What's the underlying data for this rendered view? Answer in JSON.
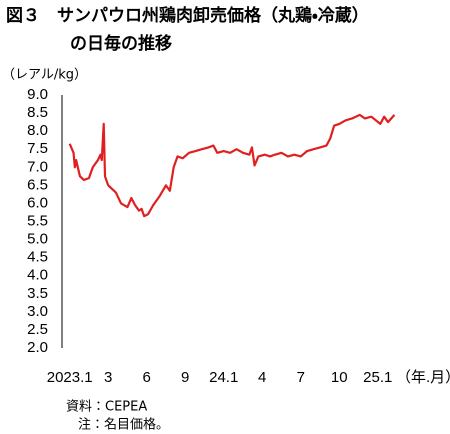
{
  "chart_data": {
    "type": "line",
    "title": [
      "図３　サンパウロ州鶏肉卸売価格（丸鶏・冷蔵）",
      "の日毎の推移"
    ],
    "y_label": "（レアル/kg）",
    "x_label": "（年.月）",
    "source": "資料：CEPEA",
    "note": "注：名目価格。",
    "color": "#e02020",
    "grid": false,
    "xlim": [
      -0.6,
      25.5
    ],
    "xticks": [
      {
        "value": 0,
        "label": "2023.1"
      },
      3,
      6,
      9,
      {
        "value": 12,
        "label": "24.1"
      },
      {
        "value": 15,
        "label": "4"
      },
      {
        "value": 18,
        "label": "7"
      },
      {
        "value": 21,
        "label": "10"
      },
      {
        "value": 24,
        "label": "25.1"
      }
    ],
    "ylim": [
      2,
      9
    ],
    "yticks": [
      {
        "value": 2,
        "label": "2.0"
      },
      2.5,
      {
        "value": 3,
        "label": "3.0"
      },
      3.5,
      {
        "value": 4,
        "label": "4.0"
      },
      4.5,
      {
        "value": 5,
        "label": "5.0"
      },
      5.5,
      {
        "value": 6,
        "label": "6.0"
      },
      6.5,
      {
        "value": 7,
        "label": "7.0"
      },
      7.5,
      {
        "value": 8,
        "label": "8.0"
      },
      8.5,
      {
        "value": 9,
        "label": "9.0"
      }
    ],
    "x": [
      0,
      0.3,
      0.4,
      0.5,
      0.8,
      1.1,
      1.5,
      1.8,
      2.2,
      2.4,
      2.5,
      2.65,
      2.75,
      3.0,
      3.3,
      3.6,
      4.0,
      4.5,
      4.8,
      5.1,
      5.4,
      5.6,
      5.8,
      6.1,
      6.5,
      7.0,
      7.5,
      7.8,
      8.1,
      8.4,
      8.8,
      9.3,
      9.8,
      10.3,
      10.8,
      11.2,
      11.5,
      12.0,
      12.5,
      13.0,
      13.5,
      14.0,
      14.2,
      14.4,
      14.7,
      15.2,
      15.6,
      16.0,
      16.5,
      17.0,
      17.5,
      18.0,
      18.5,
      19.0,
      19.5,
      20.0,
      20.3,
      20.6,
      21.0,
      21.5,
      22.0,
      22.6,
      23.0,
      23.5,
      24.2,
      24.5,
      24.8,
      25.3
    ],
    "values": [
      7.65,
      7.4,
      7.0,
      7.2,
      6.75,
      6.65,
      6.7,
      7.0,
      7.2,
      7.35,
      7.2,
      8.2,
      6.75,
      6.5,
      6.4,
      6.3,
      6.0,
      5.9,
      6.15,
      5.95,
      5.8,
      5.85,
      5.65,
      5.7,
      5.95,
      6.2,
      6.5,
      6.35,
      7.0,
      7.3,
      7.25,
      7.4,
      7.45,
      7.5,
      7.55,
      7.6,
      7.4,
      7.45,
      7.4,
      7.5,
      7.4,
      7.35,
      7.55,
      7.05,
      7.3,
      7.35,
      7.3,
      7.35,
      7.4,
      7.3,
      7.35,
      7.3,
      7.45,
      7.5,
      7.55,
      7.6,
      7.8,
      8.15,
      8.2,
      8.3,
      8.35,
      8.45,
      8.35,
      8.4,
      8.2,
      8.4,
      8.25,
      8.45
    ]
  }
}
